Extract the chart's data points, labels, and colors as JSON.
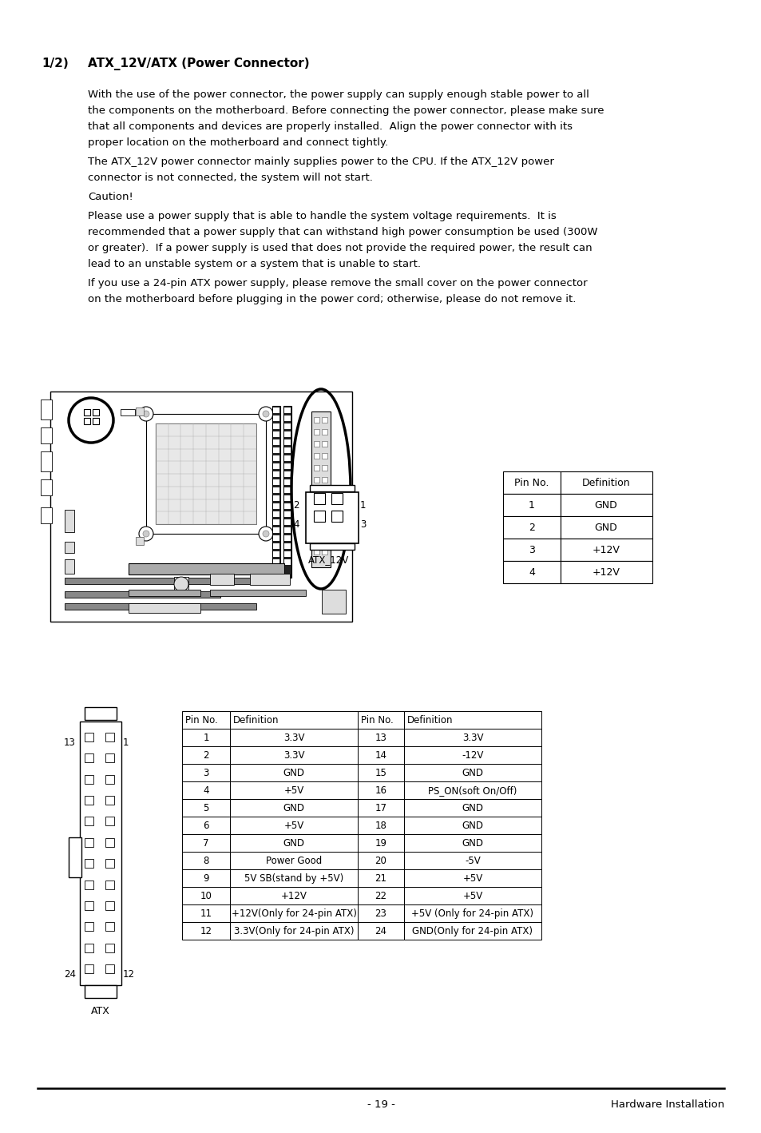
{
  "title_number": "1/2)",
  "title_text": "ATX_12V/ATX (Power Connector)",
  "lines_p1": [
    "With the use of the power connector, the power supply can supply enough stable power to all",
    "the components on the motherboard. Before connecting the power connector, please make sure",
    "that all components and devices are properly installed.  Align the power connector with its",
    "proper location on the motherboard and connect tightly."
  ],
  "lines_p2": [
    "The ATX_12V power connector mainly supplies power to the CPU. If the ATX_12V power",
    "connector is not connected, the system will not start."
  ],
  "caution": "Caution!",
  "lines_p3": [
    "Please use a power supply that is able to handle the system voltage requirements.  It is",
    "recommended that a power supply that can withstand high power consumption be used (300W",
    "or greater).  If a power supply is used that does not provide the required power, the result can",
    "lead to an unstable system or a system that is unable to start."
  ],
  "lines_p4": [
    "If you use a 24-pin ATX power supply, please remove the small cover on the power connector",
    "on the motherboard before plugging in the power cord; otherwise, please do not remove it."
  ],
  "atx12v_headers": [
    "Pin No.",
    "Definition"
  ],
  "atx12v_rows": [
    [
      "1",
      "GND"
    ],
    [
      "2",
      "GND"
    ],
    [
      "3",
      "+12V"
    ],
    [
      "4",
      "+12V"
    ]
  ],
  "atx_headers": [
    "Pin No.",
    "Definition",
    "Pin No.",
    "Definition"
  ],
  "atx_rows": [
    [
      "1",
      "3.3V",
      "13",
      "3.3V"
    ],
    [
      "2",
      "3.3V",
      "14",
      "-12V"
    ],
    [
      "3",
      "GND",
      "15",
      "GND"
    ],
    [
      "4",
      "+5V",
      "16",
      "PS_ON(soft On/Off)"
    ],
    [
      "5",
      "GND",
      "17",
      "GND"
    ],
    [
      "6",
      "+5V",
      "18",
      "GND"
    ],
    [
      "7",
      "GND",
      "19",
      "GND"
    ],
    [
      "8",
      "Power Good",
      "20",
      "-5V"
    ],
    [
      "9",
      "5V SB(stand by +5V)",
      "21",
      "+5V"
    ],
    [
      "10",
      "+12V",
      "22",
      "+5V"
    ],
    [
      "11",
      "+12V(Only for 24-pin ATX)",
      "23",
      "+5V (Only for 24-pin ATX)"
    ],
    [
      "12",
      "3.3V(Only for 24-pin ATX)",
      "24",
      "GND(Only for 24-pin ATX)"
    ]
  ],
  "footer_page": "- 19 -",
  "footer_right": "Hardware Installation"
}
